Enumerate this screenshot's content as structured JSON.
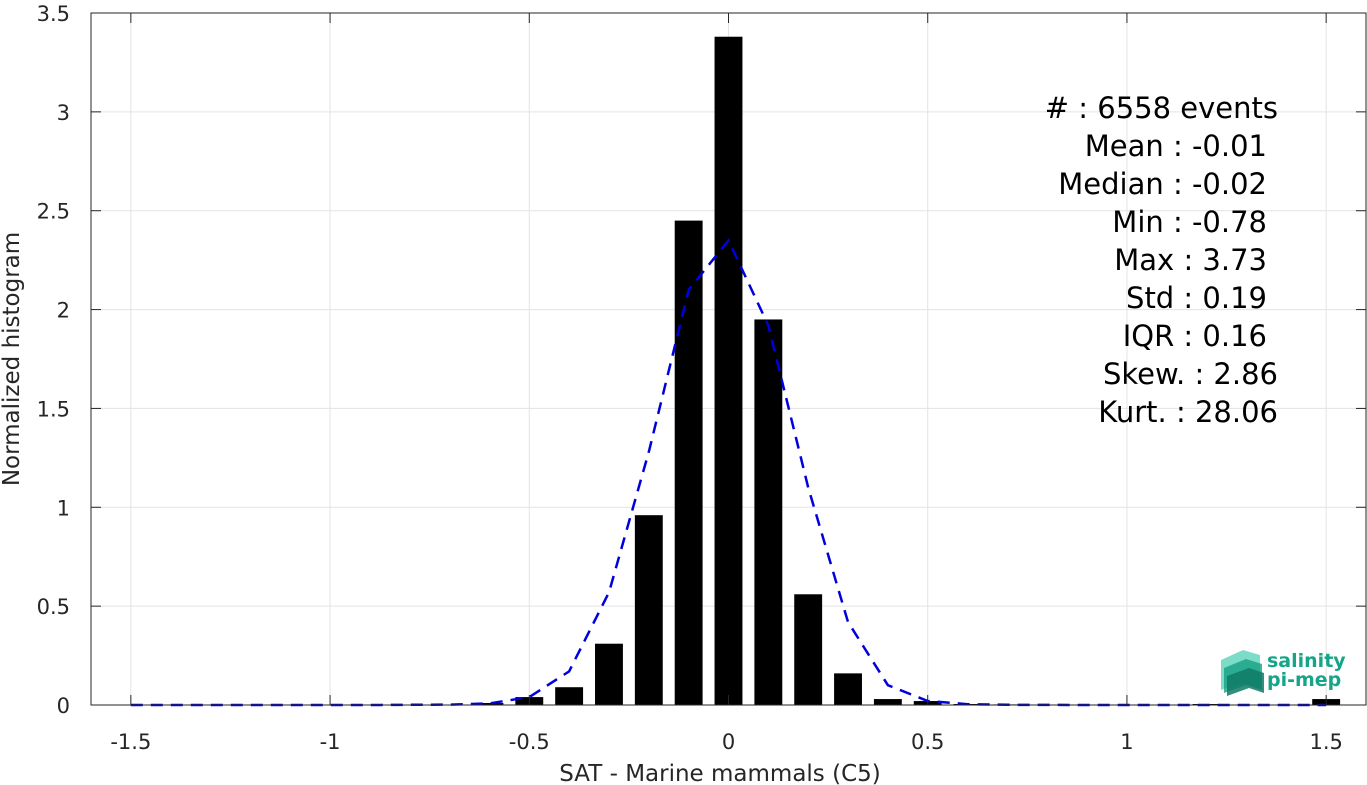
{
  "chart_data": {
    "type": "bar",
    "xlabel": "SAT - Marine mammals (C5)",
    "ylabel": "Normalized histogram",
    "xlim": [
      -1.6,
      1.6
    ],
    "ylim": [
      0,
      3.5
    ],
    "xticks": [
      -1.5,
      -1,
      -0.5,
      0,
      0.5,
      1,
      1.5
    ],
    "xtick_labels": [
      "-1.5",
      "-1",
      "-0.5",
      "0",
      "0.5",
      "1",
      "1.5"
    ],
    "yticks": [
      0,
      0.5,
      1,
      1.5,
      2,
      2.5,
      3,
      3.5
    ],
    "ytick_labels": [
      "0",
      "0.5",
      "1",
      "1.5",
      "2",
      "2.5",
      "3",
      "3.5"
    ],
    "grid": true,
    "bar_width": 0.07,
    "histogram": {
      "bin_centers": [
        -0.6,
        -0.5,
        -0.4,
        -0.3,
        -0.2,
        -0.1,
        0,
        0.1,
        0.2,
        0.3,
        0.4,
        0.5,
        0.6,
        0.7,
        0.8,
        1.2,
        1.5
      ],
      "values": [
        0.01,
        0.04,
        0.09,
        0.31,
        0.96,
        2.45,
        3.38,
        1.95,
        0.56,
        0.16,
        0.03,
        0.02,
        0.005,
        0.003,
        0.002,
        0.005,
        0.03
      ],
      "color": "#000000"
    },
    "fit_curve": {
      "style": "dashed",
      "color": "#0000dd",
      "x": [
        -1.5,
        -1.3,
        -1.1,
        -0.9,
        -0.7,
        -0.6,
        -0.5,
        -0.4,
        -0.3,
        -0.2,
        -0.1,
        0,
        0.1,
        0.2,
        0.3,
        0.4,
        0.5,
        0.6,
        0.7,
        0.9,
        1.1,
        1.3,
        1.5
      ],
      "y": [
        0,
        0,
        0,
        0,
        0.002,
        0.008,
        0.04,
        0.17,
        0.57,
        1.28,
        2.1,
        2.35,
        1.92,
        1.1,
        0.42,
        0.1,
        0.02,
        0.004,
        0.001,
        0,
        0,
        0,
        0
      ]
    }
  },
  "stats": [
    {
      "label": "#  : 6558 events"
    },
    {
      "label": "Mean : -0.01"
    },
    {
      "label": "Median : -0.02"
    },
    {
      "label": "Min : -0.78"
    },
    {
      "label": "Max : 3.73"
    },
    {
      "label": "Std : 0.19"
    },
    {
      "label": "IQR : 0.16"
    },
    {
      "label": "Skew. : 2.86"
    },
    {
      "label": "Kurt. : 28.06"
    }
  ],
  "logo": {
    "line1": "salinity",
    "line2": "pi-mep",
    "color": "#17a589"
  }
}
